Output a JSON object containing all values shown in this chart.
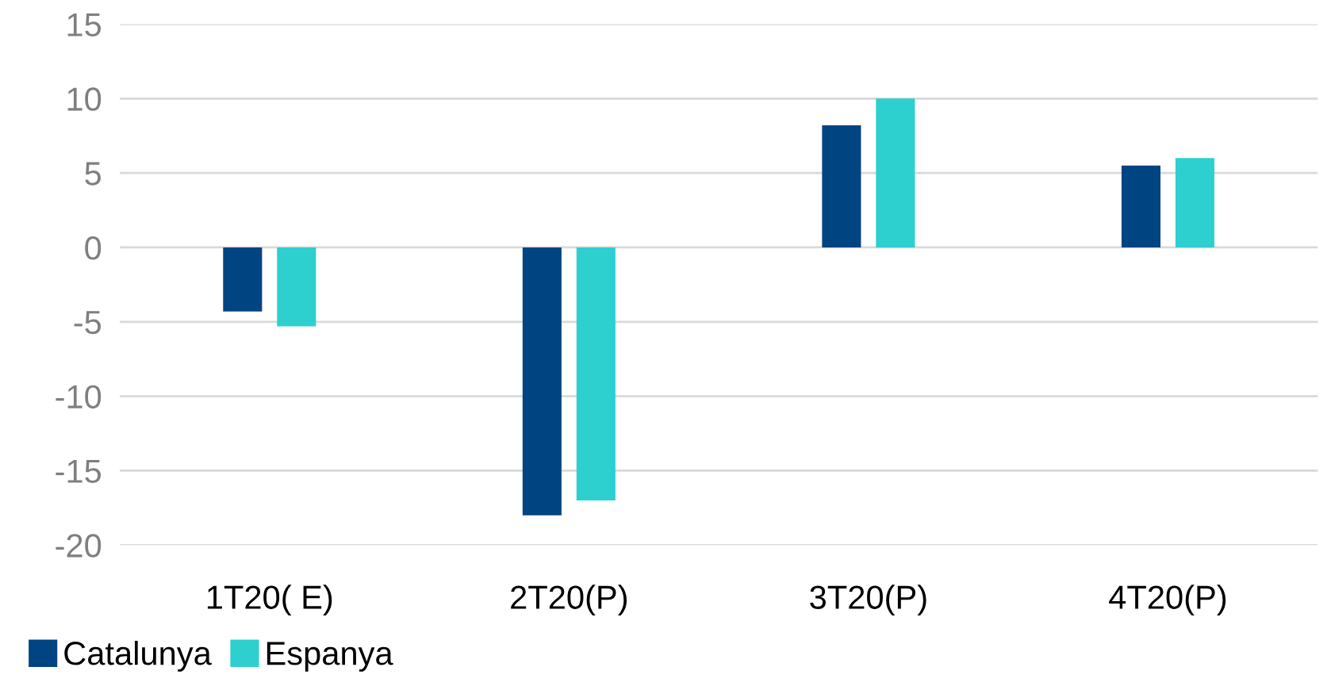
{
  "chart_data": {
    "type": "bar",
    "categories": [
      "1T20( E)",
      "2T20(P)",
      "3T20(P)",
      "4T20(P)"
    ],
    "series": [
      {
        "name": "Catalunya",
        "color": "#004481",
        "values": [
          -4.3,
          -18.0,
          8.2,
          5.5
        ]
      },
      {
        "name": "Espanya",
        "color": "#2ecfcf",
        "values": [
          -5.3,
          -17.0,
          10.0,
          6.0
        ]
      }
    ],
    "ylim": [
      -20,
      15
    ],
    "yticks": [
      -20,
      -15,
      -10,
      -5,
      0,
      5,
      10,
      15
    ],
    "grid": "y",
    "legend": "bottom left"
  }
}
